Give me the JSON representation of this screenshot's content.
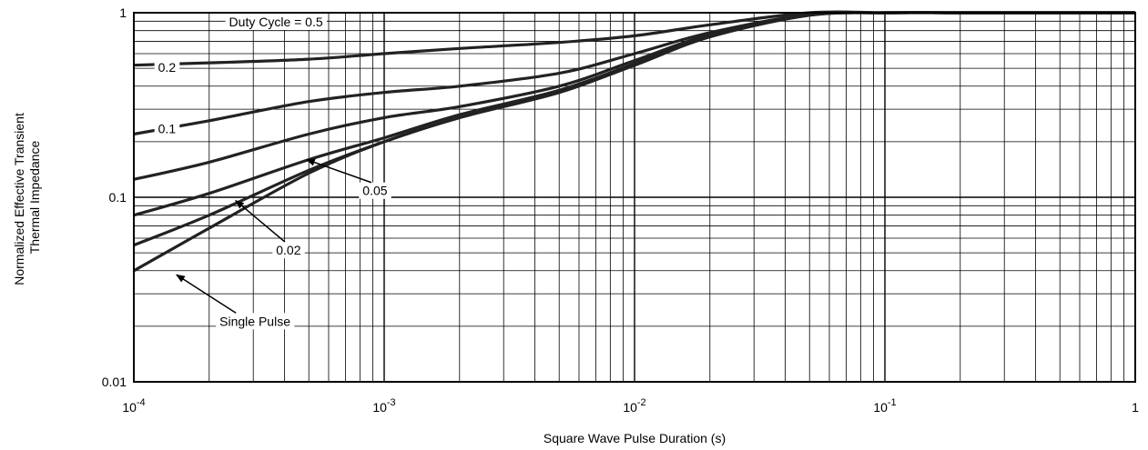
{
  "chart_data": {
    "type": "line",
    "title": "",
    "xlabel": "Square Wave Pulse Duration (s)",
    "ylabel_lines": [
      "Normalized Effective Transient",
      "Thermal Impedance"
    ],
    "xscale": "log",
    "yscale": "log",
    "xlim": [
      0.0001,
      1
    ],
    "ylim": [
      0.01,
      1
    ],
    "grid": true,
    "x_ticks": [
      {
        "value": 0.0001,
        "base": "10",
        "exp": "-4"
      },
      {
        "value": 0.001,
        "base": "10",
        "exp": "-3"
      },
      {
        "value": 0.01,
        "base": "10",
        "exp": "-2"
      },
      {
        "value": 0.1,
        "base": "10",
        "exp": "-1"
      },
      {
        "value": 1,
        "base": "1",
        "exp": ""
      }
    ],
    "y_ticks": [
      {
        "value": 1,
        "label": "1"
      },
      {
        "value": 0.1,
        "label": "0.1"
      },
      {
        "value": 0.01,
        "label": "0.01"
      }
    ],
    "series": [
      {
        "name": "Duty Cycle = 0.5",
        "x": [
          0.0001,
          0.0002,
          0.0005,
          0.001,
          0.002,
          0.005,
          0.01,
          0.02,
          0.05,
          0.1,
          0.2,
          0.5,
          1
        ],
        "y": [
          0.52,
          0.535,
          0.56,
          0.6,
          0.64,
          0.69,
          0.75,
          0.86,
          1.0,
          1.0,
          1.0,
          1.0,
          1.0
        ]
      },
      {
        "name": "0.2",
        "x": [
          0.0001,
          0.0002,
          0.0005,
          0.001,
          0.002,
          0.005,
          0.01,
          0.02,
          0.05,
          0.1,
          0.2,
          0.5,
          1
        ],
        "y": [
          0.22,
          0.26,
          0.33,
          0.37,
          0.4,
          0.47,
          0.6,
          0.78,
          0.98,
          1.0,
          1.0,
          1.0,
          1.0
        ]
      },
      {
        "name": "0.1",
        "x": [
          0.0001,
          0.0002,
          0.0005,
          0.001,
          0.002,
          0.005,
          0.01,
          0.02,
          0.05,
          0.1,
          0.2,
          0.5,
          1
        ],
        "y": [
          0.125,
          0.155,
          0.22,
          0.27,
          0.31,
          0.4,
          0.55,
          0.76,
          0.97,
          1.0,
          1.0,
          1.0,
          1.0
        ]
      },
      {
        "name": "0.05",
        "x": [
          0.0001,
          0.0002,
          0.0005,
          0.001,
          0.002,
          0.005,
          0.01,
          0.02,
          0.05,
          0.1,
          0.2,
          0.5,
          1
        ],
        "y": [
          0.08,
          0.105,
          0.16,
          0.21,
          0.28,
          0.38,
          0.53,
          0.75,
          0.97,
          1.0,
          1.0,
          1.0,
          1.0
        ]
      },
      {
        "name": "0.02",
        "x": [
          0.0001,
          0.0002,
          0.0005,
          0.001,
          0.002,
          0.005,
          0.01,
          0.02,
          0.05,
          0.1,
          0.2,
          0.5,
          1
        ],
        "y": [
          0.055,
          0.08,
          0.14,
          0.2,
          0.27,
          0.37,
          0.52,
          0.74,
          0.97,
          1.0,
          1.0,
          1.0,
          1.0
        ]
      },
      {
        "name": "Single Pulse",
        "x": [
          0.0001,
          0.0002,
          0.0005,
          0.001,
          0.002,
          0.005,
          0.01,
          0.02,
          0.05,
          0.1,
          0.2,
          0.5,
          1
        ],
        "y": [
          0.04,
          0.068,
          0.135,
          0.2,
          0.27,
          0.37,
          0.52,
          0.74,
          0.97,
          1.0,
          1.0,
          1.0,
          1.0
        ]
      }
    ],
    "curve_labels": [
      {
        "text": "Duty Cycle = 0.5",
        "x": 0.00024,
        "y": 0.88,
        "arrow": false
      },
      {
        "text": "0.2",
        "x": 0.000125,
        "y": 0.5,
        "arrow": false
      },
      {
        "text": "0.1",
        "x": 0.000125,
        "y": 0.232,
        "arrow": false
      },
      {
        "text": "0.05",
        "x": 0.00082,
        "y": 0.107,
        "arrow": true,
        "ax": 0.00049,
        "ay": 0.16
      },
      {
        "text": "0.02",
        "x": 0.00037,
        "y": 0.051,
        "arrow": true,
        "ax": 0.000255,
        "ay": 0.096
      },
      {
        "text": "Single Pulse",
        "x": 0.00022,
        "y": 0.021,
        "arrow": true,
        "ax": 0.000148,
        "ay": 0.038
      }
    ],
    "line_color": "#222222",
    "grid_color": "#000000"
  }
}
